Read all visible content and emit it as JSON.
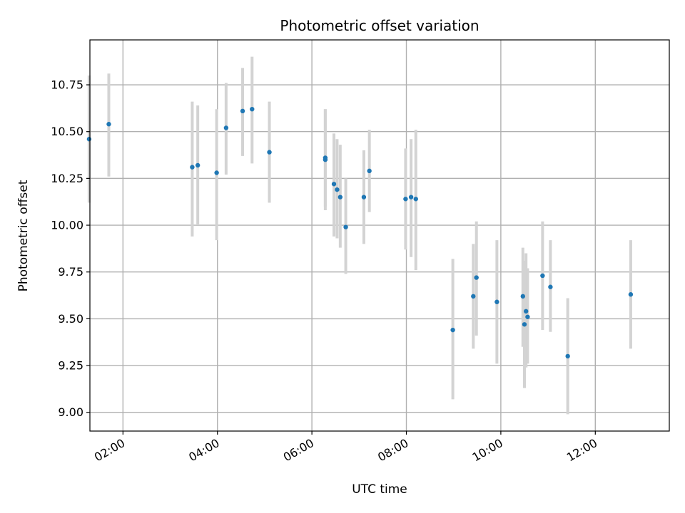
{
  "chart_data": {
    "type": "scatter",
    "title": "Photometric offset variation",
    "xlabel": "UTC time",
    "ylabel": "Photometric offset",
    "x_tick_labels": [
      "02:00",
      "04:00",
      "06:00",
      "08:00",
      "10:00",
      "12:00"
    ],
    "x_tick_hours": [
      2,
      4,
      6,
      8,
      10,
      12
    ],
    "y_tick_labels": [
      "9.00",
      "9.25",
      "9.50",
      "9.75",
      "10.00",
      "10.25",
      "10.50",
      "10.75"
    ],
    "y_tick_values": [
      9.0,
      9.25,
      9.5,
      9.75,
      10.0,
      10.25,
      10.5,
      10.75
    ],
    "xlim": [
      "01:18",
      "13:34"
    ],
    "ylim": [
      8.9,
      10.99
    ],
    "grid": true,
    "marker_color": "#1f77b4",
    "errorbar_color": "#d3d3d3",
    "series": [
      {
        "x": [
          "01:17",
          "01:42",
          "03:28",
          "03:35",
          "03:59",
          "04:11",
          "04:32",
          "04:44",
          "05:06",
          "06:17",
          "06:17",
          "06:28",
          "06:32",
          "06:36",
          "06:43",
          "07:06",
          "07:13",
          "07:59",
          "08:06",
          "08:12",
          "08:59",
          "09:25",
          "09:29",
          "09:55",
          "10:28",
          "10:30",
          "10:32",
          "10:34",
          "10:53",
          "11:03",
          "11:25",
          "12:45"
        ],
        "y": [
          10.46,
          10.54,
          10.31,
          10.32,
          10.28,
          10.52,
          10.61,
          10.62,
          10.39,
          10.36,
          10.35,
          10.22,
          10.19,
          10.15,
          9.99,
          10.15,
          10.29,
          10.14,
          10.15,
          10.14,
          9.44,
          9.62,
          9.72,
          9.59,
          9.62,
          9.47,
          9.54,
          9.51,
          9.73,
          9.67,
          9.3,
          9.63
        ],
        "y_low": [
          10.12,
          10.26,
          9.94,
          10.0,
          9.92,
          10.27,
          10.37,
          10.33,
          10.12,
          10.08,
          10.1,
          9.94,
          9.93,
          9.88,
          9.74,
          9.9,
          10.07,
          9.87,
          9.83,
          9.76,
          9.07,
          9.34,
          9.41,
          9.26,
          9.35,
          9.13,
          9.24,
          9.26,
          9.44,
          9.43,
          8.99,
          9.34
        ],
        "y_high": [
          10.8,
          10.81,
          10.66,
          10.64,
          10.62,
          10.76,
          10.84,
          10.9,
          10.66,
          10.62,
          10.62,
          10.49,
          10.46,
          10.43,
          10.25,
          10.4,
          10.51,
          10.41,
          10.46,
          10.51,
          9.82,
          9.9,
          10.02,
          9.92,
          9.88,
          9.81,
          9.85,
          9.77,
          10.02,
          9.92,
          9.61,
          9.92
        ]
      }
    ]
  }
}
